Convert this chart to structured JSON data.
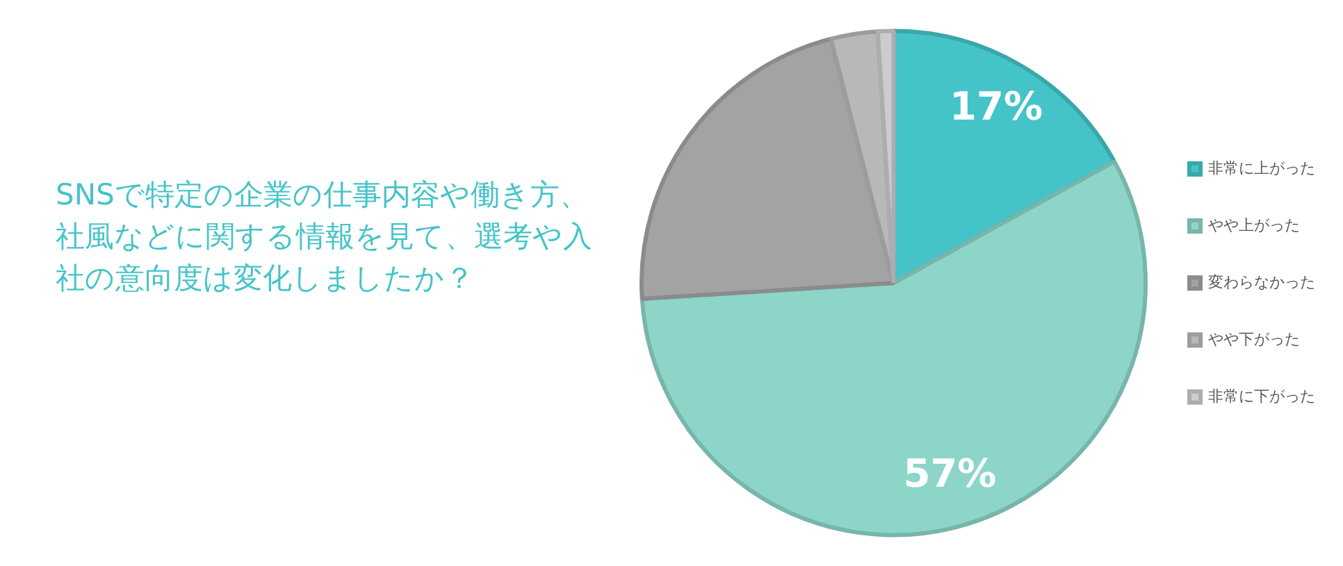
{
  "chart_data": {
    "type": "pie",
    "title": "SNSで特定の企業の仕事内容や働き方、社風などに関する情報を見て、選考や入社の意向度は変化しましたか？",
    "categories": [
      "非常に上がった",
      "やや上がった",
      "変わらなかった",
      "やや下がった",
      "非常に下がった"
    ],
    "values": [
      17,
      57,
      22,
      3,
      1
    ],
    "colors": [
      "#44c4c8",
      "#8dd5c9",
      "#a3a3a3",
      "#b8b8b8",
      "#cccccc"
    ],
    "value_labels": [
      "17%",
      "57%",
      null,
      null,
      null
    ],
    "legend": "right"
  }
}
